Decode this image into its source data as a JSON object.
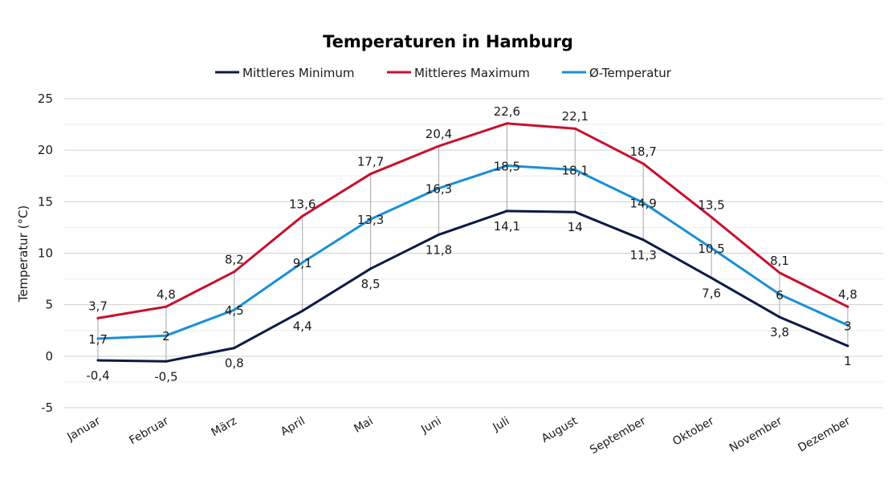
{
  "chart_data": {
    "type": "line",
    "title": "Temperaturen in Hamburg",
    "xlabel": "",
    "ylabel": "Temperatur (°C)",
    "ylim": [
      -5,
      25
    ],
    "yticks": [
      -5,
      0,
      5,
      10,
      15,
      20,
      25
    ],
    "ytick_labels": [
      "-5",
      "0",
      "5",
      "10",
      "15",
      "20",
      "25"
    ],
    "grid": true,
    "legend_position": "top",
    "categories": [
      "Januar",
      "Februar",
      "März",
      "April",
      "Mai",
      "Juni",
      "Juli",
      "August",
      "September",
      "Oktober",
      "November",
      "Dezember"
    ],
    "series": [
      {
        "name": "Mittleres Minimum",
        "color": "#0b1a45",
        "values": [
          -0.4,
          -0.5,
          0.8,
          4.4,
          8.5,
          11.8,
          14.1,
          14,
          11.3,
          7.6,
          3.8,
          1
        ],
        "labels": [
          "-0,4",
          "-0,5",
          "0,8",
          "4,4",
          "8,5",
          "11,8",
          "14,1",
          "14",
          "11,3",
          "7,6",
          "3,8",
          "1"
        ]
      },
      {
        "name": "Mittleres Maximum",
        "color": "#c8102e",
        "values": [
          3.7,
          4.8,
          8.2,
          13.6,
          17.7,
          20.4,
          22.6,
          22.1,
          18.7,
          13.5,
          8.1,
          4.8
        ],
        "labels": [
          "3,7",
          "4,8",
          "8,2",
          "13,6",
          "17,7",
          "20,4",
          "22,6",
          "22,1",
          "18,7",
          "13,5",
          "8,1",
          "4,8"
        ]
      },
      {
        "name": "Ø-Temperatur",
        "color": "#1a8fd8",
        "values": [
          1.7,
          2,
          4.5,
          9.1,
          13.3,
          16.3,
          18.5,
          18.1,
          14.9,
          10.5,
          6,
          3
        ],
        "labels": [
          "1,7",
          "2",
          "4,5",
          "9,1",
          "13,3",
          "16,3",
          "18,5",
          "18,1",
          "14,9",
          "10,5",
          "6",
          "3"
        ]
      }
    ]
  }
}
